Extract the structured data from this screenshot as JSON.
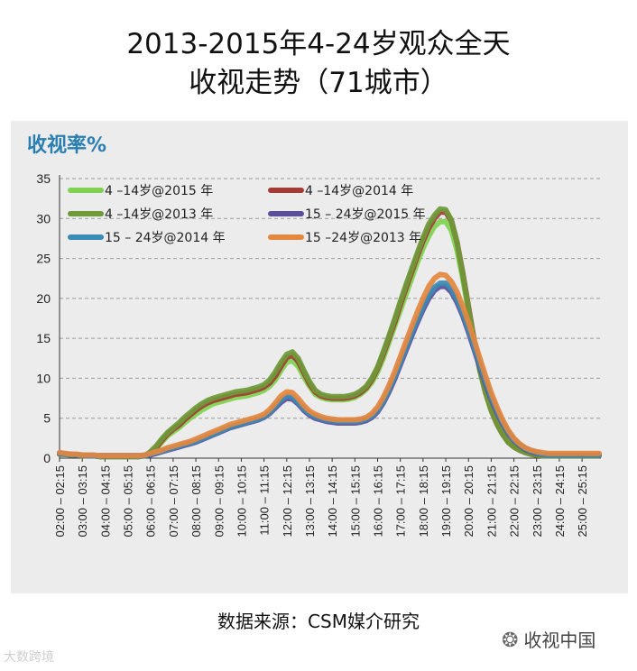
{
  "title_line1": "2013-2015年4-24岁观众全天",
  "title_line2": "收视走势（71城市）",
  "source": "数据来源：CSM媒介研究",
  "wechat": {
    "icon": "wechat-icon",
    "text": "收视中国"
  },
  "watermark": "大数跨境",
  "chart_data": {
    "type": "line",
    "ylabel": "收视率%",
    "ylim": [
      0,
      35
    ],
    "yticks": [
      0,
      5,
      10,
      15,
      20,
      25,
      30,
      35
    ],
    "grid": "y-dashed",
    "legend_position": "top-left",
    "x": [
      "02:00 – 02:15",
      "02:15",
      "02:30",
      "02:45",
      "03:00",
      "03:15",
      "03:30",
      "03:45",
      "04:00",
      "04:15",
      "04:30",
      "04:45",
      "05:00",
      "05:15",
      "05:30",
      "05:45",
      "06:00",
      "06:15",
      "06:30",
      "06:45",
      "07:00",
      "07:15",
      "07:30",
      "07:45",
      "08:00",
      "08:15",
      "08:30",
      "08:45",
      "09:00",
      "09:15",
      "09:30",
      "09:45",
      "10:00",
      "10:15",
      "10:30",
      "10:45",
      "11:00",
      "11:15",
      "11:30",
      "11:45",
      "12:00",
      "12:15",
      "12:30",
      "12:45",
      "13:00",
      "13:15",
      "13:30",
      "13:45",
      "14:00",
      "14:15",
      "14:30",
      "14:45",
      "15:00",
      "15:15",
      "15:30",
      "15:45",
      "16:00",
      "16:15",
      "16:30",
      "16:45",
      "17:00",
      "17:15",
      "17:30",
      "17:45",
      "18:00",
      "18:15",
      "18:30",
      "18:45",
      "19:00",
      "19:15",
      "19:30",
      "19:45",
      "20:00",
      "20:15",
      "20:30",
      "20:45",
      "21:00",
      "21:15",
      "21:30",
      "21:45",
      "22:00",
      "22:15",
      "22:30",
      "22:45",
      "23:00",
      "23:15",
      "23:30",
      "23:45",
      "24:00",
      "24:15",
      "24:30",
      "24:45",
      "25:00",
      "25:15",
      "25:30",
      "25:45"
    ],
    "xticklabels": [
      "02:00 – 02:15",
      "03:00 – 03:15",
      "04:00 – 04:15",
      "05:00 – 05:15",
      "06:00 – 06:15",
      "07:00 – 07:15",
      "08:00 – 08:15",
      "09:00 – 09:15",
      "10:00 – 10:15",
      "11:00 – 11:15",
      "12:00 – 12:15",
      "13:00 – 13:15",
      "14:00 – 14:15",
      "15:00 – 15:15",
      "16:00 – 16:15",
      "17:00 – 17:15",
      "18:00 – 18:15",
      "19:00 – 19:15",
      "20:00 – 20:15",
      "21:00 – 21:15",
      "22:00 – 22:15",
      "23:00 – 23:15",
      "24:00 – 24:15",
      "25:00 – 25:15"
    ],
    "series": [
      {
        "name": "4 –14岁@2015 年",
        "color": "#7fd24f",
        "values": [
          0.5,
          0.5,
          0.4,
          0.4,
          0.3,
          0.3,
          0.3,
          0.2,
          0.2,
          0.2,
          0.2,
          0.2,
          0.2,
          0.2,
          0.2,
          0.3,
          0.6,
          1.2,
          2.0,
          2.8,
          3.3,
          3.8,
          4.4,
          5.0,
          5.5,
          6.0,
          6.4,
          6.8,
          7.0,
          7.2,
          7.4,
          7.6,
          7.7,
          7.8,
          8.0,
          8.2,
          8.5,
          9.0,
          9.8,
          11.0,
          12.0,
          12.2,
          11.5,
          10.2,
          9.0,
          8.0,
          7.6,
          7.4,
          7.3,
          7.3,
          7.3,
          7.4,
          7.6,
          8.0,
          8.6,
          9.5,
          10.8,
          12.5,
          14.5,
          16.5,
          18.5,
          20.5,
          22.5,
          24.5,
          26.3,
          27.8,
          29.0,
          29.6,
          29.6,
          28.5,
          26.0,
          22.5,
          18.5,
          14.5,
          11.0,
          8.2,
          6.0,
          4.3,
          3.0,
          2.0,
          1.4,
          1.0,
          0.7,
          0.5,
          0.4,
          0.3,
          0.3,
          0.3,
          0.3,
          0.3,
          0.3,
          0.3,
          0.3,
          0.3,
          0.3,
          0.3
        ]
      },
      {
        "name": "4 –14岁@2014 年",
        "color": "#a23b35",
        "values": [
          0.5,
          0.5,
          0.4,
          0.4,
          0.3,
          0.3,
          0.3,
          0.2,
          0.2,
          0.2,
          0.2,
          0.2,
          0.2,
          0.2,
          0.2,
          0.3,
          0.7,
          1.3,
          2.2,
          3.0,
          3.6,
          4.1,
          4.8,
          5.4,
          6.0,
          6.5,
          6.9,
          7.2,
          7.4,
          7.6,
          7.8,
          8.0,
          8.1,
          8.2,
          8.4,
          8.6,
          8.9,
          9.4,
          10.3,
          11.5,
          12.6,
          12.9,
          12.1,
          10.7,
          9.3,
          8.3,
          7.8,
          7.6,
          7.5,
          7.5,
          7.5,
          7.6,
          7.8,
          8.2,
          8.8,
          9.8,
          11.2,
          13.0,
          15.0,
          17.0,
          19.2,
          21.3,
          23.3,
          25.3,
          27.2,
          28.8,
          30.0,
          30.8,
          30.8,
          29.7,
          27.0,
          23.2,
          19.0,
          14.8,
          11.2,
          8.3,
          6.0,
          4.3,
          3.0,
          2.0,
          1.4,
          1.0,
          0.7,
          0.5,
          0.4,
          0.3,
          0.3,
          0.3,
          0.3,
          0.3,
          0.3,
          0.3,
          0.3,
          0.3,
          0.3,
          0.3
        ]
      },
      {
        "name": "4 –14岁@2013 年",
        "color": "#6e9a38",
        "values": [
          0.5,
          0.5,
          0.4,
          0.4,
          0.3,
          0.3,
          0.3,
          0.2,
          0.2,
          0.2,
          0.2,
          0.2,
          0.2,
          0.2,
          0.2,
          0.3,
          0.8,
          1.5,
          2.4,
          3.2,
          3.8,
          4.4,
          5.1,
          5.7,
          6.3,
          6.8,
          7.2,
          7.5,
          7.7,
          7.9,
          8.1,
          8.3,
          8.4,
          8.5,
          8.7,
          8.9,
          9.2,
          9.8,
          10.8,
          12.0,
          13.0,
          13.3,
          12.5,
          11.0,
          9.6,
          8.5,
          8.0,
          7.8,
          7.7,
          7.7,
          7.7,
          7.8,
          8.0,
          8.4,
          9.0,
          10.0,
          11.4,
          13.3,
          15.3,
          17.4,
          19.6,
          21.7,
          23.7,
          25.7,
          27.6,
          29.3,
          30.4,
          31.2,
          31.1,
          29.8,
          27.0,
          23.0,
          18.8,
          14.6,
          11.0,
          8.2,
          6.0,
          4.3,
          3.0,
          2.0,
          1.4,
          1.0,
          0.7,
          0.5,
          0.4,
          0.3,
          0.3,
          0.3,
          0.3,
          0.3,
          0.3,
          0.3,
          0.3,
          0.3,
          0.3,
          0.3
        ]
      },
      {
        "name": "15 – 24岁@2015 年",
        "color": "#5a4e9a",
        "values": [
          0.6,
          0.5,
          0.5,
          0.4,
          0.4,
          0.3,
          0.3,
          0.3,
          0.3,
          0.3,
          0.3,
          0.3,
          0.3,
          0.3,
          0.3,
          0.3,
          0.4,
          0.6,
          0.8,
          1.0,
          1.2,
          1.4,
          1.6,
          1.8,
          2.0,
          2.3,
          2.6,
          2.9,
          3.2,
          3.5,
          3.8,
          4.0,
          4.2,
          4.4,
          4.6,
          4.8,
          5.1,
          5.6,
          6.3,
          7.0,
          7.5,
          7.4,
          6.8,
          6.0,
          5.4,
          5.0,
          4.8,
          4.6,
          4.5,
          4.4,
          4.4,
          4.4,
          4.4,
          4.5,
          4.7,
          5.1,
          5.8,
          6.9,
          8.3,
          9.9,
          11.7,
          13.5,
          15.3,
          17.0,
          18.6,
          20.0,
          21.0,
          21.5,
          21.5,
          20.8,
          19.5,
          17.8,
          15.8,
          13.6,
          11.4,
          9.3,
          7.4,
          5.7,
          4.3,
          3.1,
          2.2,
          1.6,
          1.1,
          0.8,
          0.6,
          0.5,
          0.4,
          0.4,
          0.4,
          0.4,
          0.4,
          0.4,
          0.4,
          0.4,
          0.4,
          0.4
        ]
      },
      {
        "name": "15 – 24岁@2014 年",
        "color": "#3a8bb5",
        "values": [
          0.6,
          0.5,
          0.5,
          0.4,
          0.4,
          0.3,
          0.3,
          0.3,
          0.3,
          0.3,
          0.3,
          0.3,
          0.3,
          0.3,
          0.3,
          0.3,
          0.5,
          0.7,
          0.9,
          1.1,
          1.3,
          1.5,
          1.7,
          1.9,
          2.1,
          2.4,
          2.7,
          3.0,
          3.3,
          3.6,
          3.9,
          4.1,
          4.3,
          4.5,
          4.7,
          4.9,
          5.2,
          5.7,
          6.5,
          7.3,
          7.8,
          7.7,
          7.0,
          6.2,
          5.6,
          5.2,
          5.0,
          4.8,
          4.7,
          4.6,
          4.6,
          4.6,
          4.6,
          4.7,
          4.9,
          5.3,
          6.0,
          7.1,
          8.6,
          10.2,
          12.0,
          13.9,
          15.7,
          17.4,
          19.0,
          20.4,
          21.4,
          21.9,
          21.9,
          21.2,
          19.9,
          18.2,
          16.2,
          14.0,
          11.8,
          9.7,
          7.7,
          6.0,
          4.5,
          3.3,
          2.3,
          1.7,
          1.2,
          0.9,
          0.7,
          0.5,
          0.4,
          0.4,
          0.4,
          0.4,
          0.4,
          0.4,
          0.4,
          0.4,
          0.4,
          0.4
        ]
      },
      {
        "name": "15 –24岁@2013 年",
        "color": "#e4873f",
        "values": [
          0.7,
          0.6,
          0.5,
          0.5,
          0.4,
          0.4,
          0.4,
          0.3,
          0.3,
          0.3,
          0.3,
          0.3,
          0.3,
          0.3,
          0.3,
          0.4,
          0.6,
          0.8,
          1.0,
          1.3,
          1.5,
          1.7,
          1.9,
          2.1,
          2.4,
          2.7,
          3.0,
          3.3,
          3.6,
          3.9,
          4.2,
          4.4,
          4.6,
          4.8,
          5.0,
          5.2,
          5.5,
          6.1,
          6.9,
          7.8,
          8.3,
          8.2,
          7.5,
          6.6,
          5.9,
          5.5,
          5.2,
          5.0,
          4.9,
          4.8,
          4.8,
          4.8,
          4.8,
          4.9,
          5.1,
          5.6,
          6.4,
          7.6,
          9.1,
          10.8,
          12.7,
          14.6,
          16.5,
          18.3,
          20.0,
          21.5,
          22.5,
          23.0,
          22.9,
          22.1,
          20.8,
          19.0,
          17.0,
          14.8,
          12.5,
          10.3,
          8.2,
          6.4,
          4.8,
          3.5,
          2.5,
          1.8,
          1.3,
          1.0,
          0.8,
          0.7,
          0.6,
          0.6,
          0.6,
          0.6,
          0.6,
          0.6,
          0.6,
          0.6,
          0.6,
          0.6
        ]
      }
    ]
  }
}
